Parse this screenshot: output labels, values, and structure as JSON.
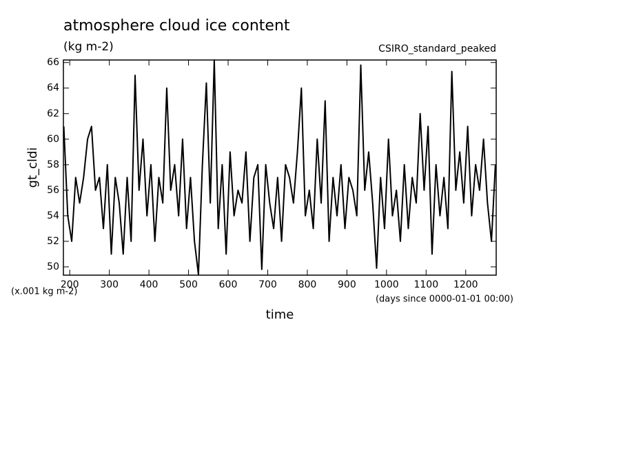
{
  "chart_data": {
    "type": "line",
    "title": "atmosphere cloud ice content",
    "subtitle": "(kg m-2)",
    "annotation": "CSIRO_standard_peaked",
    "ylabel": "gt_cldi",
    "y_unit_label": "(x.001 kg m-2)",
    "x_unit_label": "(days since 0000-01-01 00:00)",
    "xlabel": "time",
    "xlim": [
      184,
      1277
    ],
    "ylim": [
      49.35,
      66.2
    ],
    "xticks": [
      200,
      300,
      400,
      500,
      600,
      700,
      800,
      900,
      1000,
      1100,
      1200
    ],
    "yticks": [
      50,
      52,
      54,
      56,
      58,
      60,
      62,
      64,
      66
    ],
    "x": [
      185,
      195,
      205,
      215,
      225,
      235,
      245,
      255,
      265,
      275,
      285,
      295,
      305,
      315,
      325,
      335,
      345,
      355,
      365,
      375,
      385,
      395,
      405,
      415,
      425,
      435,
      445,
      455,
      465,
      475,
      485,
      495,
      505,
      515,
      525,
      535,
      545,
      555,
      565,
      575,
      585,
      595,
      605,
      615,
      625,
      635,
      645,
      655,
      665,
      675,
      685,
      695,
      705,
      715,
      725,
      735,
      745,
      755,
      765,
      775,
      785,
      795,
      805,
      815,
      825,
      835,
      845,
      855,
      865,
      875,
      885,
      895,
      905,
      915,
      925,
      935,
      945,
      955,
      965,
      975,
      985,
      995,
      1005,
      1015,
      1025,
      1035,
      1045,
      1055,
      1065,
      1075,
      1085,
      1095,
      1105,
      1115,
      1125,
      1135,
      1145,
      1155,
      1165,
      1175,
      1185,
      1195,
      1205,
      1215,
      1225,
      1235,
      1245,
      1255,
      1265,
      1275
    ],
    "series": [
      {
        "name": "gt_cldi",
        "color": "#000000",
        "values": [
          61,
          54,
          52,
          57,
          55,
          57,
          60,
          61,
          56,
          57,
          53,
          58,
          51,
          57,
          55,
          51,
          57,
          52,
          65,
          56,
          60,
          54,
          58,
          52,
          57,
          55,
          64,
          56,
          58,
          54,
          60,
          53,
          57,
          52,
          49.4,
          58,
          64.4,
          55,
          66.2,
          53,
          58,
          51,
          59,
          54,
          56,
          55,
          59,
          52,
          57,
          58,
          49.8,
          58,
          55,
          53,
          57,
          52,
          58,
          57,
          55,
          59,
          64,
          54,
          56,
          53,
          60,
          55,
          63,
          52,
          57,
          54,
          58,
          53,
          57,
          56,
          54,
          65.8,
          56,
          59,
          55,
          49.9,
          57,
          53,
          60,
          54,
          56,
          52,
          58,
          53,
          57,
          55,
          62,
          56,
          61,
          51,
          58,
          54,
          57,
          53,
          65.3,
          56,
          59,
          55,
          61,
          54,
          58,
          56,
          60,
          55,
          52,
          58
        ]
      }
    ]
  }
}
